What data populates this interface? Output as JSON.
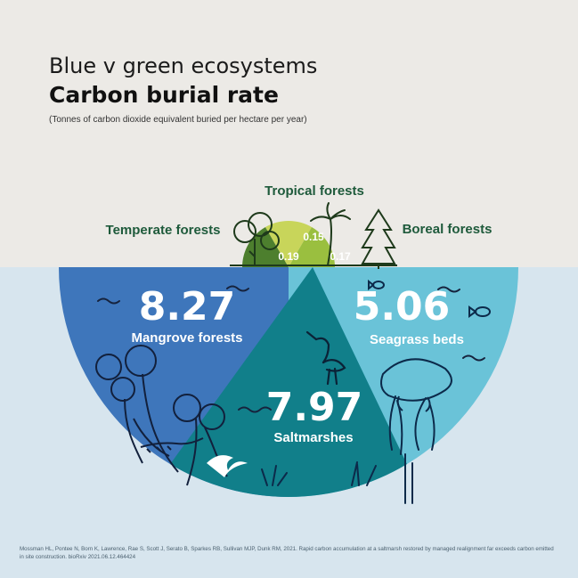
{
  "header": {
    "title": "Blue v green ecosystems",
    "subtitle_bold": "Carbon burial rate",
    "note": "(Tonnes of carbon dioxide equivalent buried per hectare per year)"
  },
  "citation": "Mossman HL, Pontee N, Born K, Lawrence, Rae S, Scott J, Serato B, Sparkes RB, Sullivan MJP, Dunk RM, 2021. Rapid carbon accumulation at a saltmarsh restored by managed realignment far exceeds carbon emitted in site construction. bioRxiv 2021.06.12.464424",
  "colors": {
    "mangrove": "#3e76bb",
    "saltmarsh": "#117f8a",
    "seagrass": "#6ac3d8",
    "temperate": "#4d7f2e",
    "tropical": "#c8d55a",
    "boreal": "#9abf3f",
    "land_band": "#eceae6",
    "sea": "#d7e5ee"
  },
  "chart_data": {
    "type": "pie",
    "layout": "semicircle",
    "title": "Carbon burial rate",
    "blue_ecosystems": [
      {
        "name": "Mangrove forests",
        "value": 8.27,
        "display": "8.27"
      },
      {
        "name": "Saltmarshes",
        "value": 7.97,
        "display": "7.97"
      },
      {
        "name": "Seagrass beds",
        "value": 5.06,
        "display": "5.06"
      }
    ],
    "green_ecosystems": [
      {
        "name": "Temperate forests",
        "value": 0.19,
        "display": "0.19"
      },
      {
        "name": "Tropical forests",
        "value": 0.15,
        "display": "0.15"
      },
      {
        "name": "Boreal forests",
        "value": 0.17,
        "display": "0.17"
      }
    ]
  }
}
